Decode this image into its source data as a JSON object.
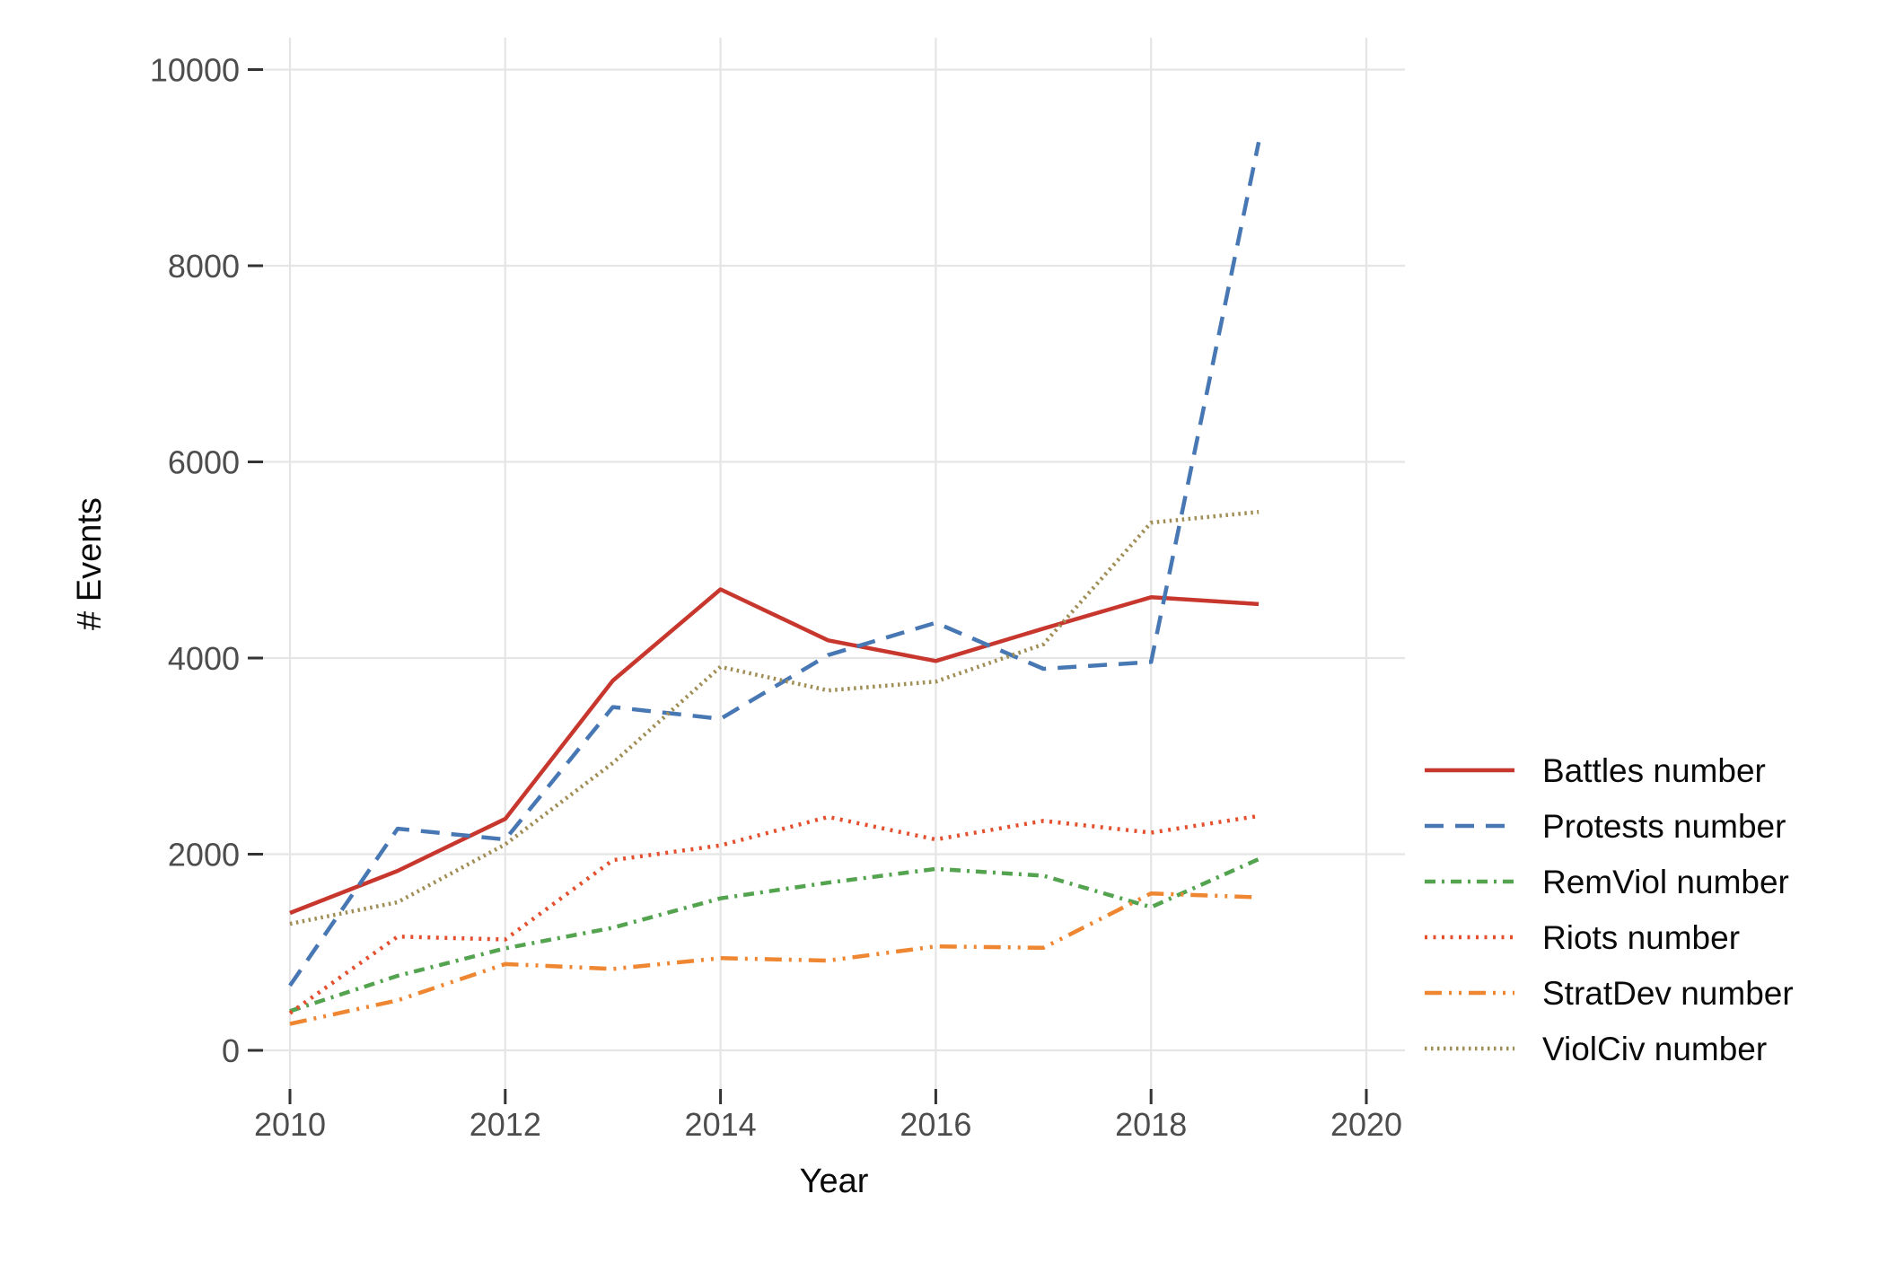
{
  "chart_data": {
    "type": "line",
    "title": "",
    "xlabel": "Year",
    "ylabel": "# Events",
    "grid": true,
    "legend_position": "right",
    "x": [
      2010,
      2011,
      2012,
      2013,
      2014,
      2015,
      2016,
      2017,
      2018,
      2019
    ],
    "x_ticks": [
      2010,
      2012,
      2014,
      2016,
      2018,
      2020
    ],
    "x_tick_labels": [
      "2010",
      "2012",
      "2014",
      "2016",
      "2018",
      "2020"
    ],
    "y_ticks": [
      0,
      2000,
      4000,
      6000,
      8000,
      10000
    ],
    "y_tick_labels": [
      "0",
      "2000",
      "4000",
      "6000",
      "8000",
      "10000"
    ],
    "xlim": [
      2009.3,
      2020.4
    ],
    "ylim": [
      -400,
      10330
    ],
    "series": [
      {
        "name": "Battles number",
        "color": "#c8372d",
        "linestyle": "solid",
        "values": [
          1400,
          1830,
          2360,
          3770,
          4700,
          4180,
          3970,
          4300,
          4620,
          4550
        ]
      },
      {
        "name": "Protests number",
        "color": "#4878b4",
        "linestyle": "dashed",
        "values": [
          660,
          2260,
          2150,
          3500,
          3380,
          4030,
          4360,
          3890,
          3960,
          9260
        ]
      },
      {
        "name": "RemViol number",
        "color": "#53a34f",
        "linestyle": "dotdash",
        "values": [
          400,
          760,
          1040,
          1250,
          1550,
          1710,
          1850,
          1780,
          1460,
          1950
        ]
      },
      {
        "name": "Riots number",
        "color": "#e4502e",
        "linestyle": "dotted",
        "values": [
          380,
          1160,
          1130,
          1940,
          2090,
          2380,
          2150,
          2340,
          2220,
          2390
        ]
      },
      {
        "name": "StratDev number",
        "color": "#ee8632",
        "linestyle": "twodash",
        "values": [
          270,
          510,
          880,
          830,
          940,
          915,
          1060,
          1045,
          1600,
          1560
        ]
      },
      {
        "name": "ViolCiv number",
        "color": "#9f8e55",
        "linestyle": "fine-dotted",
        "values": [
          1290,
          1510,
          2100,
          2930,
          3910,
          3670,
          3760,
          4140,
          5380,
          5490
        ]
      }
    ],
    "style": {
      "gridline_color": "#e5e5e5",
      "tick_color": "#333333",
      "tick_label_color": "#4d4d4d"
    }
  }
}
